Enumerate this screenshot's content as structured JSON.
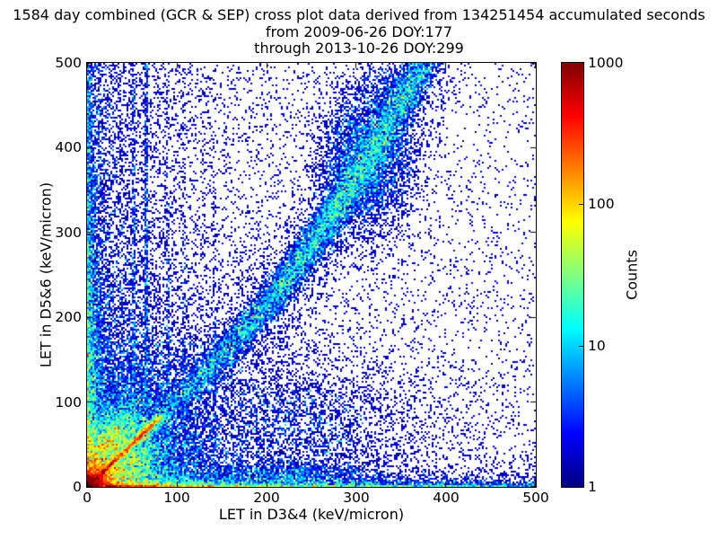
{
  "title": {
    "line1": "1584 day combined (GCR & SEP) cross plot data derived from 134251454 accumulated seconds",
    "line2": "from 2009-06-26 DOY:177",
    "line3": "through 2013-10-26 DOY:299"
  },
  "chart_data": {
    "type": "heatmap",
    "title": "1584 day combined (GCR & SEP) cross plot data derived from 134251454 accumulated seconds from 2009-06-26 DOY:177 through 2013-10-26 DOY:299",
    "xlabel": "LET in D3&4 (keV/micron)",
    "ylabel": "LET in D5&6 (keV/micron)",
    "xlim": [
      0,
      500
    ],
    "ylim": [
      0,
      500
    ],
    "xticks": [
      0,
      100,
      200,
      300,
      400,
      500
    ],
    "yticks": [
      0,
      100,
      200,
      300,
      400,
      500
    ],
    "grid": false,
    "duration_days": 1584,
    "accumulated_seconds": 134251454,
    "start_date": "2009-06-26 DOY:177",
    "end_date": "2013-10-26 DOY:299",
    "colorbar": {
      "label": "Counts",
      "scale": "log",
      "min": 1,
      "max": 1000,
      "ticks": [
        1000,
        100,
        10,
        1
      ],
      "colormap": "jet",
      "gradient_top_to_bottom": [
        "#800000",
        "#ff0000",
        "#ffff00",
        "#00ffff",
        "#0000ff",
        "#000080"
      ]
    },
    "density_model": {
      "comment": "expected counts per 2x2-unit bin; sum of features; jet colormap on log10(count)/3",
      "features": [
        {
          "type": "radial_exp",
          "amp": 3000,
          "scale": 6
        },
        {
          "type": "radial_exp",
          "amp": 250,
          "scale": 14
        },
        {
          "type": "radial_exp",
          "amp": 35,
          "scale": 28
        },
        {
          "type": "radial_exp",
          "amp": 5,
          "scale": 60
        },
        {
          "type": "exp2",
          "amp": 1500,
          "xscale": 45,
          "yscale": 1.3
        },
        {
          "type": "exp2",
          "amp": 70,
          "xscale": 400,
          "yscale": 1.4
        },
        {
          "type": "exp2",
          "amp": 100,
          "xscale": 90,
          "yscale": 4.5
        },
        {
          "type": "exp2",
          "amp": 6,
          "xscale": 280,
          "yscale": 13
        },
        {
          "type": "exp2",
          "amp": 120,
          "xscale": 1.5,
          "yscale": 50
        },
        {
          "type": "exp2",
          "amp": 10,
          "xscale": 2.5,
          "yscale": 500
        },
        {
          "type": "exp2",
          "amp": 45,
          "xscale": 5,
          "yscale": 130
        },
        {
          "type": "exp2",
          "amp": 5,
          "xscale": 16,
          "yscale": 170
        },
        {
          "type": "exp2",
          "amp": 1.0,
          "xscale": 45,
          "yscale": 600
        },
        {
          "type": "diag_ridge",
          "core_amp": 1600,
          "core_scale": 19,
          "bragg_amp": 260,
          "bragg_u": 62,
          "bragg_sig": 12,
          "width": 1.7,
          "sheath_amp": 90,
          "sheath_scale": 28,
          "sheath_bragg": 45,
          "sheath_width": 5.5,
          "u_end": 80,
          "end_soft": 5
        },
        {
          "type": "gauss",
          "x": 79,
          "y": 79,
          "sx": 4,
          "sy": 4,
          "amp": 14
        },
        {
          "type": "ray",
          "slope": 1.5,
          "amp": 26,
          "rpeak": 58,
          "rsig": 30,
          "rend": 115
        },
        {
          "type": "ray",
          "slope": 1.9,
          "amp": 22,
          "rpeak": 58,
          "rsig": 30,
          "rend": 115
        },
        {
          "type": "ray",
          "slope": 2.5,
          "amp": 18,
          "rpeak": 55,
          "rsig": 28,
          "rend": 110
        },
        {
          "type": "ray",
          "slope": 3.3,
          "amp": 14,
          "rpeak": 52,
          "rsig": 26,
          "rend": 105
        },
        {
          "type": "ray",
          "slope": 5.5,
          "amp": 10,
          "rpeak": 50,
          "rsig": 25,
          "rend": 100
        },
        {
          "type": "ray",
          "slope": 0.667,
          "amp": 16,
          "rpeak": 55,
          "rsig": 28,
          "rend": 105
        },
        {
          "type": "ray",
          "slope": 0.526,
          "amp": 13,
          "rpeak": 52,
          "rsig": 26,
          "rend": 100
        },
        {
          "type": "ray",
          "slope": 0.4,
          "amp": 10,
          "rpeak": 50,
          "rsig": 25,
          "rend": 95
        },
        {
          "type": "ray",
          "slope": 0.3,
          "amp": 8,
          "rpeak": 48,
          "rsig": 24,
          "rend": 90
        },
        {
          "type": "wedge",
          "amp": 22,
          "rscale": 40,
          "smin": 1.05,
          "smax": 4.2
        },
        {
          "type": "wedge",
          "amp": 14,
          "rscale": 35,
          "smin": 0.25,
          "smax": 0.95
        },
        {
          "type": "band",
          "slope": 1.02,
          "bend": 0.0018,
          "bend_x0": 120,
          "amp_base": 3,
          "amp_peak": 8,
          "peak_x": 270,
          "peak_w": 140,
          "sig0": 8,
          "sig_x": 0.05,
          "x_lo": 70,
          "lo_soft": 22,
          "x_hi": 390,
          "hi_soft": 38,
          "halo_amp": 0.55,
          "halo_mult": 3.2
        },
        {
          "type": "gauss",
          "x": 310,
          "y": 380,
          "sx": 38,
          "sy": 60,
          "amp": 3.2
        },
        {
          "type": "gauss",
          "x": 335,
          "y": 465,
          "sx": 35,
          "sy": 50,
          "amp": 0.8
        },
        {
          "type": "gauss",
          "x": 250,
          "y": 80,
          "sx": 110,
          "sy": 55,
          "amp": 0.7
        },
        {
          "type": "gauss",
          "x": 230,
          "y": 12,
          "sx": 55,
          "sy": 12,
          "amp": 3
        },
        {
          "type": "vstreak",
          "x0": 52,
          "amp": 4,
          "sig": 1.6,
          "yscale": 320
        },
        {
          "type": "vstreak",
          "x0": 66,
          "amp": 5,
          "sig": 1.7,
          "yscale": 380
        },
        {
          "type": "vstreak",
          "x0": 90,
          "amp": 2,
          "sig": 1.6,
          "yscale": 300
        },
        {
          "type": "vstreak",
          "x0": 108,
          "amp": 1.6,
          "sig": 1.6,
          "yscale": 280
        },
        {
          "type": "vstreak",
          "x0": 142,
          "amp": 1.2,
          "sig": 1.6,
          "yscale": 240
        },
        {
          "type": "exp2",
          "amp": 0.42,
          "xscale": 130,
          "yscale": 100000
        },
        {
          "type": "exp2",
          "amp": 0.1,
          "xscale": 100000,
          "yscale": 220
        },
        {
          "type": "const",
          "amp": 0.09
        }
      ]
    }
  },
  "layout_colors": {
    "background": "#ffffff",
    "axis": "#000000",
    "text": "#000000",
    "sparse_dot": "#000080"
  }
}
